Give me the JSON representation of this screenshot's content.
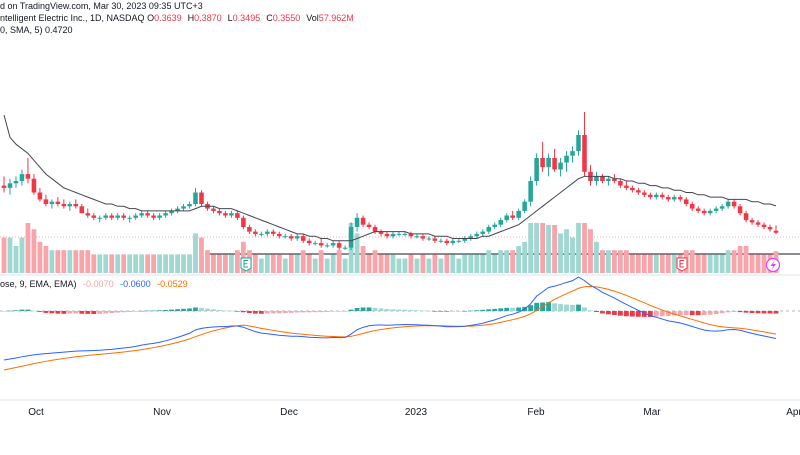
{
  "header": {
    "source_line": "d on TradingView.com, Mar 30, 2023 09:35 UTC+3",
    "symbol_line": "ntelligent Electric Inc., 1D, NASDAQ",
    "ohlc": [
      {
        "label": "O",
        "value": "0.3639"
      },
      {
        "label": "H",
        "value": "0.3870"
      },
      {
        "label": "L",
        "value": "0.3495"
      },
      {
        "label": "C",
        "value": "0.3550"
      },
      {
        "label": "Vol",
        "value": "57.962M"
      }
    ],
    "sma_line": "0, SMA, 5)",
    "sma_value": "0.4720"
  },
  "macd_legend": {
    "label": "ose, 9, EMA, EMA)",
    "hist_value": "-0.0070",
    "macd_value": "-0.0600",
    "signal_value": "-0.0529"
  },
  "colors": {
    "up": "#26a69a",
    "down": "#f23645",
    "vol_up": "#9fd7d1",
    "vol_down": "#f7a4ab",
    "sma": "#434651",
    "macd": "#2962ff",
    "signal": "#ff6d00",
    "earnings_icon": "#26a69a",
    "earnings_icon_red": "#f23645",
    "lightning_icon": "#e040fb"
  },
  "chart_data": {
    "type": "candlestick",
    "x_labels": [
      "Oct",
      "Nov",
      "Dec",
      "2023",
      "Feb",
      "Mar",
      "Apr"
    ],
    "candles": [
      [
        0.56,
        0.6,
        0.53,
        0.55
      ],
      [
        0.55,
        0.59,
        0.52,
        0.57
      ],
      [
        0.57,
        0.6,
        0.55,
        0.58
      ],
      [
        0.58,
        0.63,
        0.56,
        0.61
      ],
      [
        0.61,
        0.68,
        0.57,
        0.59
      ],
      [
        0.59,
        0.61,
        0.52,
        0.53
      ],
      [
        0.53,
        0.55,
        0.49,
        0.5
      ],
      [
        0.5,
        0.52,
        0.47,
        0.48
      ],
      [
        0.48,
        0.5,
        0.46,
        0.49
      ],
      [
        0.49,
        0.51,
        0.47,
        0.48
      ],
      [
        0.48,
        0.5,
        0.46,
        0.47
      ],
      [
        0.47,
        0.49,
        0.45,
        0.48
      ],
      [
        0.48,
        0.5,
        0.46,
        0.47
      ],
      [
        0.47,
        0.48,
        0.44,
        0.44
      ],
      [
        0.44,
        0.46,
        0.42,
        0.43
      ],
      [
        0.43,
        0.44,
        0.41,
        0.42
      ],
      [
        0.42,
        0.43,
        0.4,
        0.42
      ],
      [
        0.42,
        0.44,
        0.41,
        0.43
      ],
      [
        0.43,
        0.44,
        0.41,
        0.42
      ],
      [
        0.42,
        0.44,
        0.41,
        0.43
      ],
      [
        0.43,
        0.44,
        0.41,
        0.42
      ],
      [
        0.42,
        0.43,
        0.4,
        0.42
      ],
      [
        0.42,
        0.44,
        0.41,
        0.43
      ],
      [
        0.43,
        0.45,
        0.42,
        0.44
      ],
      [
        0.44,
        0.45,
        0.42,
        0.43
      ],
      [
        0.43,
        0.44,
        0.41,
        0.42
      ],
      [
        0.42,
        0.44,
        0.41,
        0.43
      ],
      [
        0.43,
        0.45,
        0.42,
        0.44
      ],
      [
        0.44,
        0.46,
        0.43,
        0.45
      ],
      [
        0.45,
        0.47,
        0.44,
        0.46
      ],
      [
        0.46,
        0.48,
        0.45,
        0.47
      ],
      [
        0.47,
        0.49,
        0.46,
        0.48
      ],
      [
        0.48,
        0.55,
        0.47,
        0.53
      ],
      [
        0.53,
        0.54,
        0.47,
        0.48
      ],
      [
        0.48,
        0.49,
        0.45,
        0.46
      ],
      [
        0.46,
        0.47,
        0.44,
        0.45
      ],
      [
        0.45,
        0.46,
        0.43,
        0.44
      ],
      [
        0.44,
        0.45,
        0.42,
        0.43
      ],
      [
        0.43,
        0.45,
        0.42,
        0.44
      ],
      [
        0.44,
        0.45,
        0.41,
        0.42
      ],
      [
        0.42,
        0.43,
        0.37,
        0.38
      ],
      [
        0.38,
        0.39,
        0.35,
        0.36
      ],
      [
        0.36,
        0.37,
        0.34,
        0.35
      ],
      [
        0.35,
        0.36,
        0.34,
        0.35
      ],
      [
        0.35,
        0.37,
        0.34,
        0.36
      ],
      [
        0.36,
        0.37,
        0.34,
        0.35
      ],
      [
        0.35,
        0.36,
        0.33,
        0.34
      ],
      [
        0.34,
        0.35,
        0.33,
        0.34
      ],
      [
        0.34,
        0.35,
        0.32,
        0.33
      ],
      [
        0.33,
        0.35,
        0.32,
        0.34
      ],
      [
        0.34,
        0.35,
        0.31,
        0.32
      ],
      [
        0.32,
        0.33,
        0.3,
        0.31
      ],
      [
        0.31,
        0.32,
        0.3,
        0.31
      ],
      [
        0.31,
        0.33,
        0.29,
        0.3
      ],
      [
        0.3,
        0.31,
        0.29,
        0.3
      ],
      [
        0.3,
        0.32,
        0.29,
        0.31
      ],
      [
        0.31,
        0.32,
        0.28,
        0.29
      ],
      [
        0.29,
        0.3,
        0.28,
        0.29
      ],
      [
        0.29,
        0.4,
        0.28,
        0.38
      ],
      [
        0.38,
        0.44,
        0.36,
        0.42
      ],
      [
        0.42,
        0.43,
        0.38,
        0.39
      ],
      [
        0.39,
        0.4,
        0.37,
        0.38
      ],
      [
        0.38,
        0.39,
        0.35,
        0.36
      ],
      [
        0.36,
        0.37,
        0.34,
        0.35
      ],
      [
        0.35,
        0.36,
        0.33,
        0.34
      ],
      [
        0.34,
        0.36,
        0.33,
        0.35
      ],
      [
        0.35,
        0.36,
        0.34,
        0.35
      ],
      [
        0.35,
        0.36,
        0.34,
        0.35
      ],
      [
        0.35,
        0.36,
        0.33,
        0.34
      ],
      [
        0.34,
        0.35,
        0.33,
        0.34
      ],
      [
        0.34,
        0.35,
        0.32,
        0.33
      ],
      [
        0.33,
        0.34,
        0.32,
        0.33
      ],
      [
        0.33,
        0.34,
        0.31,
        0.32
      ],
      [
        0.32,
        0.33,
        0.31,
        0.32
      ],
      [
        0.32,
        0.33,
        0.3,
        0.31
      ],
      [
        0.31,
        0.33,
        0.3,
        0.32
      ],
      [
        0.32,
        0.33,
        0.31,
        0.32
      ],
      [
        0.32,
        0.34,
        0.31,
        0.33
      ],
      [
        0.33,
        0.35,
        0.32,
        0.34
      ],
      [
        0.34,
        0.36,
        0.33,
        0.35
      ],
      [
        0.35,
        0.37,
        0.34,
        0.36
      ],
      [
        0.36,
        0.39,
        0.35,
        0.38
      ],
      [
        0.38,
        0.4,
        0.37,
        0.39
      ],
      [
        0.39,
        0.42,
        0.38,
        0.41
      ],
      [
        0.41,
        0.44,
        0.4,
        0.43
      ],
      [
        0.43,
        0.45,
        0.41,
        0.42
      ],
      [
        0.42,
        0.46,
        0.41,
        0.45
      ],
      [
        0.45,
        0.5,
        0.44,
        0.49
      ],
      [
        0.49,
        0.6,
        0.47,
        0.58
      ],
      [
        0.58,
        0.7,
        0.56,
        0.68
      ],
      [
        0.68,
        0.75,
        0.62,
        0.64
      ],
      [
        0.64,
        0.7,
        0.6,
        0.68
      ],
      [
        0.68,
        0.72,
        0.62,
        0.63
      ],
      [
        0.63,
        0.68,
        0.6,
        0.66
      ],
      [
        0.66,
        0.71,
        0.62,
        0.69
      ],
      [
        0.69,
        0.73,
        0.66,
        0.71
      ],
      [
        0.71,
        0.8,
        0.69,
        0.78
      ],
      [
        0.78,
        0.88,
        0.6,
        0.62
      ],
      [
        0.62,
        0.65,
        0.56,
        0.58
      ],
      [
        0.58,
        0.62,
        0.56,
        0.6
      ],
      [
        0.6,
        0.61,
        0.57,
        0.58
      ],
      [
        0.58,
        0.6,
        0.56,
        0.59
      ],
      [
        0.59,
        0.61,
        0.57,
        0.58
      ],
      [
        0.58,
        0.59,
        0.55,
        0.56
      ],
      [
        0.56,
        0.58,
        0.54,
        0.55
      ],
      [
        0.55,
        0.56,
        0.53,
        0.54
      ],
      [
        0.54,
        0.55,
        0.52,
        0.53
      ],
      [
        0.53,
        0.54,
        0.51,
        0.52
      ],
      [
        0.52,
        0.53,
        0.5,
        0.51
      ],
      [
        0.51,
        0.53,
        0.5,
        0.52
      ],
      [
        0.52,
        0.53,
        0.5,
        0.51
      ],
      [
        0.51,
        0.52,
        0.49,
        0.5
      ],
      [
        0.5,
        0.52,
        0.49,
        0.51
      ],
      [
        0.51,
        0.52,
        0.49,
        0.5
      ],
      [
        0.5,
        0.51,
        0.47,
        0.48
      ],
      [
        0.48,
        0.49,
        0.45,
        0.46
      ],
      [
        0.46,
        0.47,
        0.44,
        0.45
      ],
      [
        0.45,
        0.46,
        0.43,
        0.44
      ],
      [
        0.44,
        0.46,
        0.43,
        0.45
      ],
      [
        0.45,
        0.47,
        0.44,
        0.46
      ],
      [
        0.46,
        0.48,
        0.45,
        0.47
      ],
      [
        0.47,
        0.5,
        0.46,
        0.49
      ],
      [
        0.49,
        0.5,
        0.46,
        0.47
      ],
      [
        0.47,
        0.48,
        0.43,
        0.44
      ],
      [
        0.44,
        0.45,
        0.4,
        0.41
      ],
      [
        0.41,
        0.42,
        0.39,
        0.4
      ],
      [
        0.4,
        0.41,
        0.38,
        0.39
      ],
      [
        0.39,
        0.4,
        0.37,
        0.38
      ],
      [
        0.38,
        0.39,
        0.36,
        0.37
      ],
      [
        0.3639,
        0.387,
        0.3495,
        0.355
      ]
    ],
    "sma": [
      0.8,
      0.77,
      0.74,
      0.72,
      0.7,
      0.67,
      0.64,
      0.61,
      0.59,
      0.57,
      0.55,
      0.54,
      0.53,
      0.52,
      0.51,
      0.5,
      0.49,
      0.48,
      0.48,
      0.47,
      0.47,
      0.46,
      0.46,
      0.45,
      0.45,
      0.45,
      0.45,
      0.45,
      0.45,
      0.45,
      0.45,
      0.45,
      0.46,
      0.47,
      0.47,
      0.47,
      0.46,
      0.46,
      0.46,
      0.45,
      0.44,
      0.43,
      0.42,
      0.41,
      0.4,
      0.39,
      0.38,
      0.37,
      0.36,
      0.35,
      0.35,
      0.34,
      0.34,
      0.33,
      0.33,
      0.32,
      0.32,
      0.32,
      0.32,
      0.33,
      0.34,
      0.35,
      0.36,
      0.36,
      0.36,
      0.36,
      0.36,
      0.36,
      0.35,
      0.35,
      0.35,
      0.35,
      0.34,
      0.34,
      0.34,
      0.33,
      0.33,
      0.33,
      0.33,
      0.33,
      0.34,
      0.34,
      0.35,
      0.36,
      0.37,
      0.38,
      0.39,
      0.41,
      0.43,
      0.45,
      0.47,
      0.49,
      0.51,
      0.53,
      0.55,
      0.57,
      0.59,
      0.6,
      0.6,
      0.6,
      0.6,
      0.6,
      0.59,
      0.59,
      0.58,
      0.58,
      0.57,
      0.57,
      0.56,
      0.56,
      0.55,
      0.55,
      0.54,
      0.54,
      0.53,
      0.53,
      0.52,
      0.52,
      0.51,
      0.51,
      0.51,
      0.5,
      0.5,
      0.5,
      0.5,
      0.49,
      0.49,
      0.48,
      0.48,
      0.472
    ],
    "macd": {
      "macd_line_start": -0.35,
      "signal_line_start": -0.4
    }
  }
}
